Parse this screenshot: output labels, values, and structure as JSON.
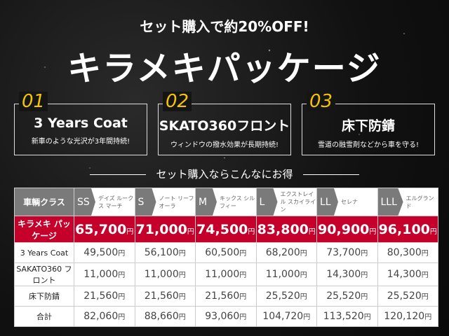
{
  "header": {
    "tagline": "セット購入で約20%OFF!",
    "title": "キラメキパッケージ"
  },
  "features": [
    {
      "num": "01",
      "title": "3 Years Coat",
      "desc": "新車のような光沢が3年間持続!"
    },
    {
      "num": "02",
      "title": "SKATO360フロント",
      "desc": "ウィンドウの撥水効果が長期持続!"
    },
    {
      "num": "03",
      "title": "床下防錆",
      "desc": "雪道の融雪剤などから車を守る!"
    }
  ],
  "subtitle": "セット購入ならこんなにお得",
  "table": {
    "corner": "車輌クラス",
    "yen": "円",
    "classes": [
      {
        "cls": "SS",
        "models": "デイズ ルークス マーチ"
      },
      {
        "cls": "S",
        "models": "ノート リーフ オーラ"
      },
      {
        "cls": "M",
        "models": "キックス シルフィー"
      },
      {
        "cls": "L",
        "models": "エクストレイル スカイライン"
      },
      {
        "cls": "LL",
        "models": "セレナ"
      },
      {
        "cls": "LLL",
        "models": "エルグランド"
      }
    ],
    "rows": [
      {
        "label": "キラメキ パッケージ",
        "values": [
          "65,700",
          "71,000",
          "74,500",
          "83,800",
          "90,900",
          "96,100"
        ]
      },
      {
        "label": "3 Years Coat",
        "values": [
          "49,500",
          "56,100",
          "60,500",
          "68,200",
          "73,700",
          "80,300"
        ]
      },
      {
        "label": "SAKATO360 フロント",
        "values": [
          "11,000",
          "11,000",
          "11,000",
          "11,000",
          "14,300",
          "14,300"
        ]
      },
      {
        "label": "床下防錆",
        "values": [
          "21,560",
          "21,560",
          "21,560",
          "25,520",
          "25,520",
          "25,520"
        ]
      },
      {
        "label": "合計",
        "values": [
          "82,060",
          "88,660",
          "93,060",
          "104,720",
          "113,520",
          "120,120"
        ]
      }
    ]
  },
  "colors": {
    "accent": "#c4002b",
    "number": "#f5c400",
    "header_gray": "#7a7a7a"
  }
}
